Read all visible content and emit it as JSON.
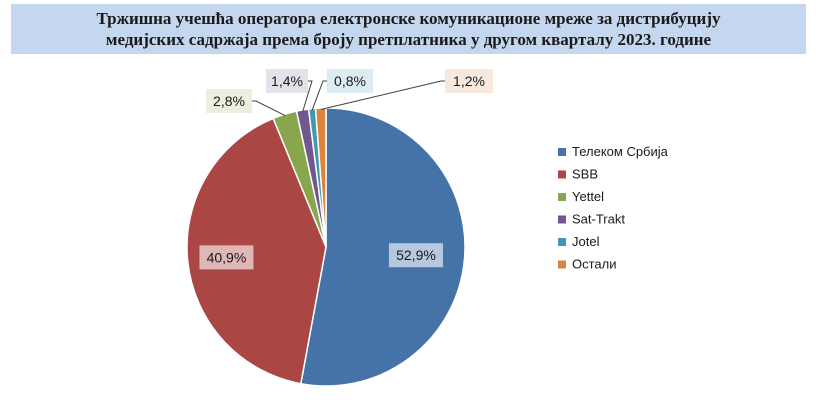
{
  "title_lines": [
    "Тржишна учешћа оператора електронске комуникационе мреже за дистрибуцију",
    "медијских садржаја према броју претплатника у другом кварталу 2023. године"
  ],
  "chart_data": {
    "type": "pie",
    "title": "Тржишна учешћа оператора електронске комуникационе мреже за дистрибуцију медијских садржаја према броју претплатника у другом кварталу 2023. године",
    "unit": "%",
    "legend_position": "right",
    "slices": [
      {
        "name": "Телеком Србија",
        "value": 52.9,
        "label": "52,9%",
        "color": "#4572a7"
      },
      {
        "name": "SBB",
        "value": 40.9,
        "label": "40,9%",
        "color": "#aa4643"
      },
      {
        "name": "Yettel",
        "value": 2.8,
        "label": "2,8%",
        "color": "#89a54e"
      },
      {
        "name": "Sat-Trakt",
        "value": 1.4,
        "label": "1,4%",
        "color": "#71588f"
      },
      {
        "name": "Jotel",
        "value": 0.8,
        "label": "0,8%",
        "color": "#4198af"
      },
      {
        "name": "Остали",
        "value": 1.2,
        "label": "1,2%",
        "color": "#db843d"
      }
    ]
  }
}
